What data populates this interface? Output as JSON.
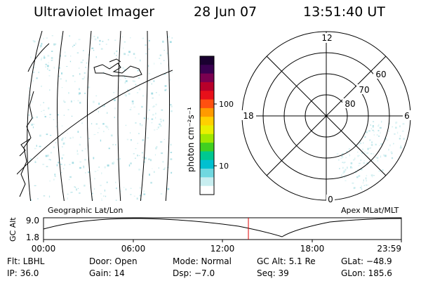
{
  "header": {
    "title": "Ultraviolet Imager",
    "date": "28 Jun 07",
    "time": "13:51:40 UT"
  },
  "colorbar": {
    "label": "photon cm⁻²s⁻¹",
    "ticks": [
      "100",
      "10"
    ],
    "colors": [
      "#1a0030",
      "#3a0050",
      "#7a0050",
      "#b8002a",
      "#e8101a",
      "#ff5010",
      "#ff9a00",
      "#ffd000",
      "#e8f000",
      "#a0e800",
      "#40d020",
      "#00c890",
      "#00c0d0",
      "#70d8e0",
      "#c8eef0",
      "#ffffff"
    ]
  },
  "geo_map": {
    "label": "Geographic Lat/Lon"
  },
  "polar": {
    "label": "Apex MLat/MLT",
    "mlt_labels": {
      "top": "12",
      "left": "18",
      "right": "6",
      "bottom": "0"
    },
    "lat_labels": [
      "60",
      "70",
      "80"
    ]
  },
  "altitude_plot": {
    "ylabel": "GC Alt",
    "yticks": [
      "9.0",
      "1.8"
    ],
    "xticks": [
      "00:00",
      "06:00",
      "12:00",
      "18:00",
      "23:59"
    ],
    "marker_time": "13:51:40",
    "marker_color": "#e00000"
  },
  "info": {
    "row1": {
      "flt": "Flt: LBHL",
      "door": "Door: Open",
      "mode": "Mode: Normal",
      "gcalt": "GC Alt: 5.1 Re",
      "glat": "GLat: −48.9"
    },
    "row2": {
      "ip": "IP: 36.0",
      "gain": "Gain: 14",
      "dsp": "Dsp:    −7.0",
      "seq": "Seq: 39",
      "glon": "GLon: 185.6"
    }
  }
}
